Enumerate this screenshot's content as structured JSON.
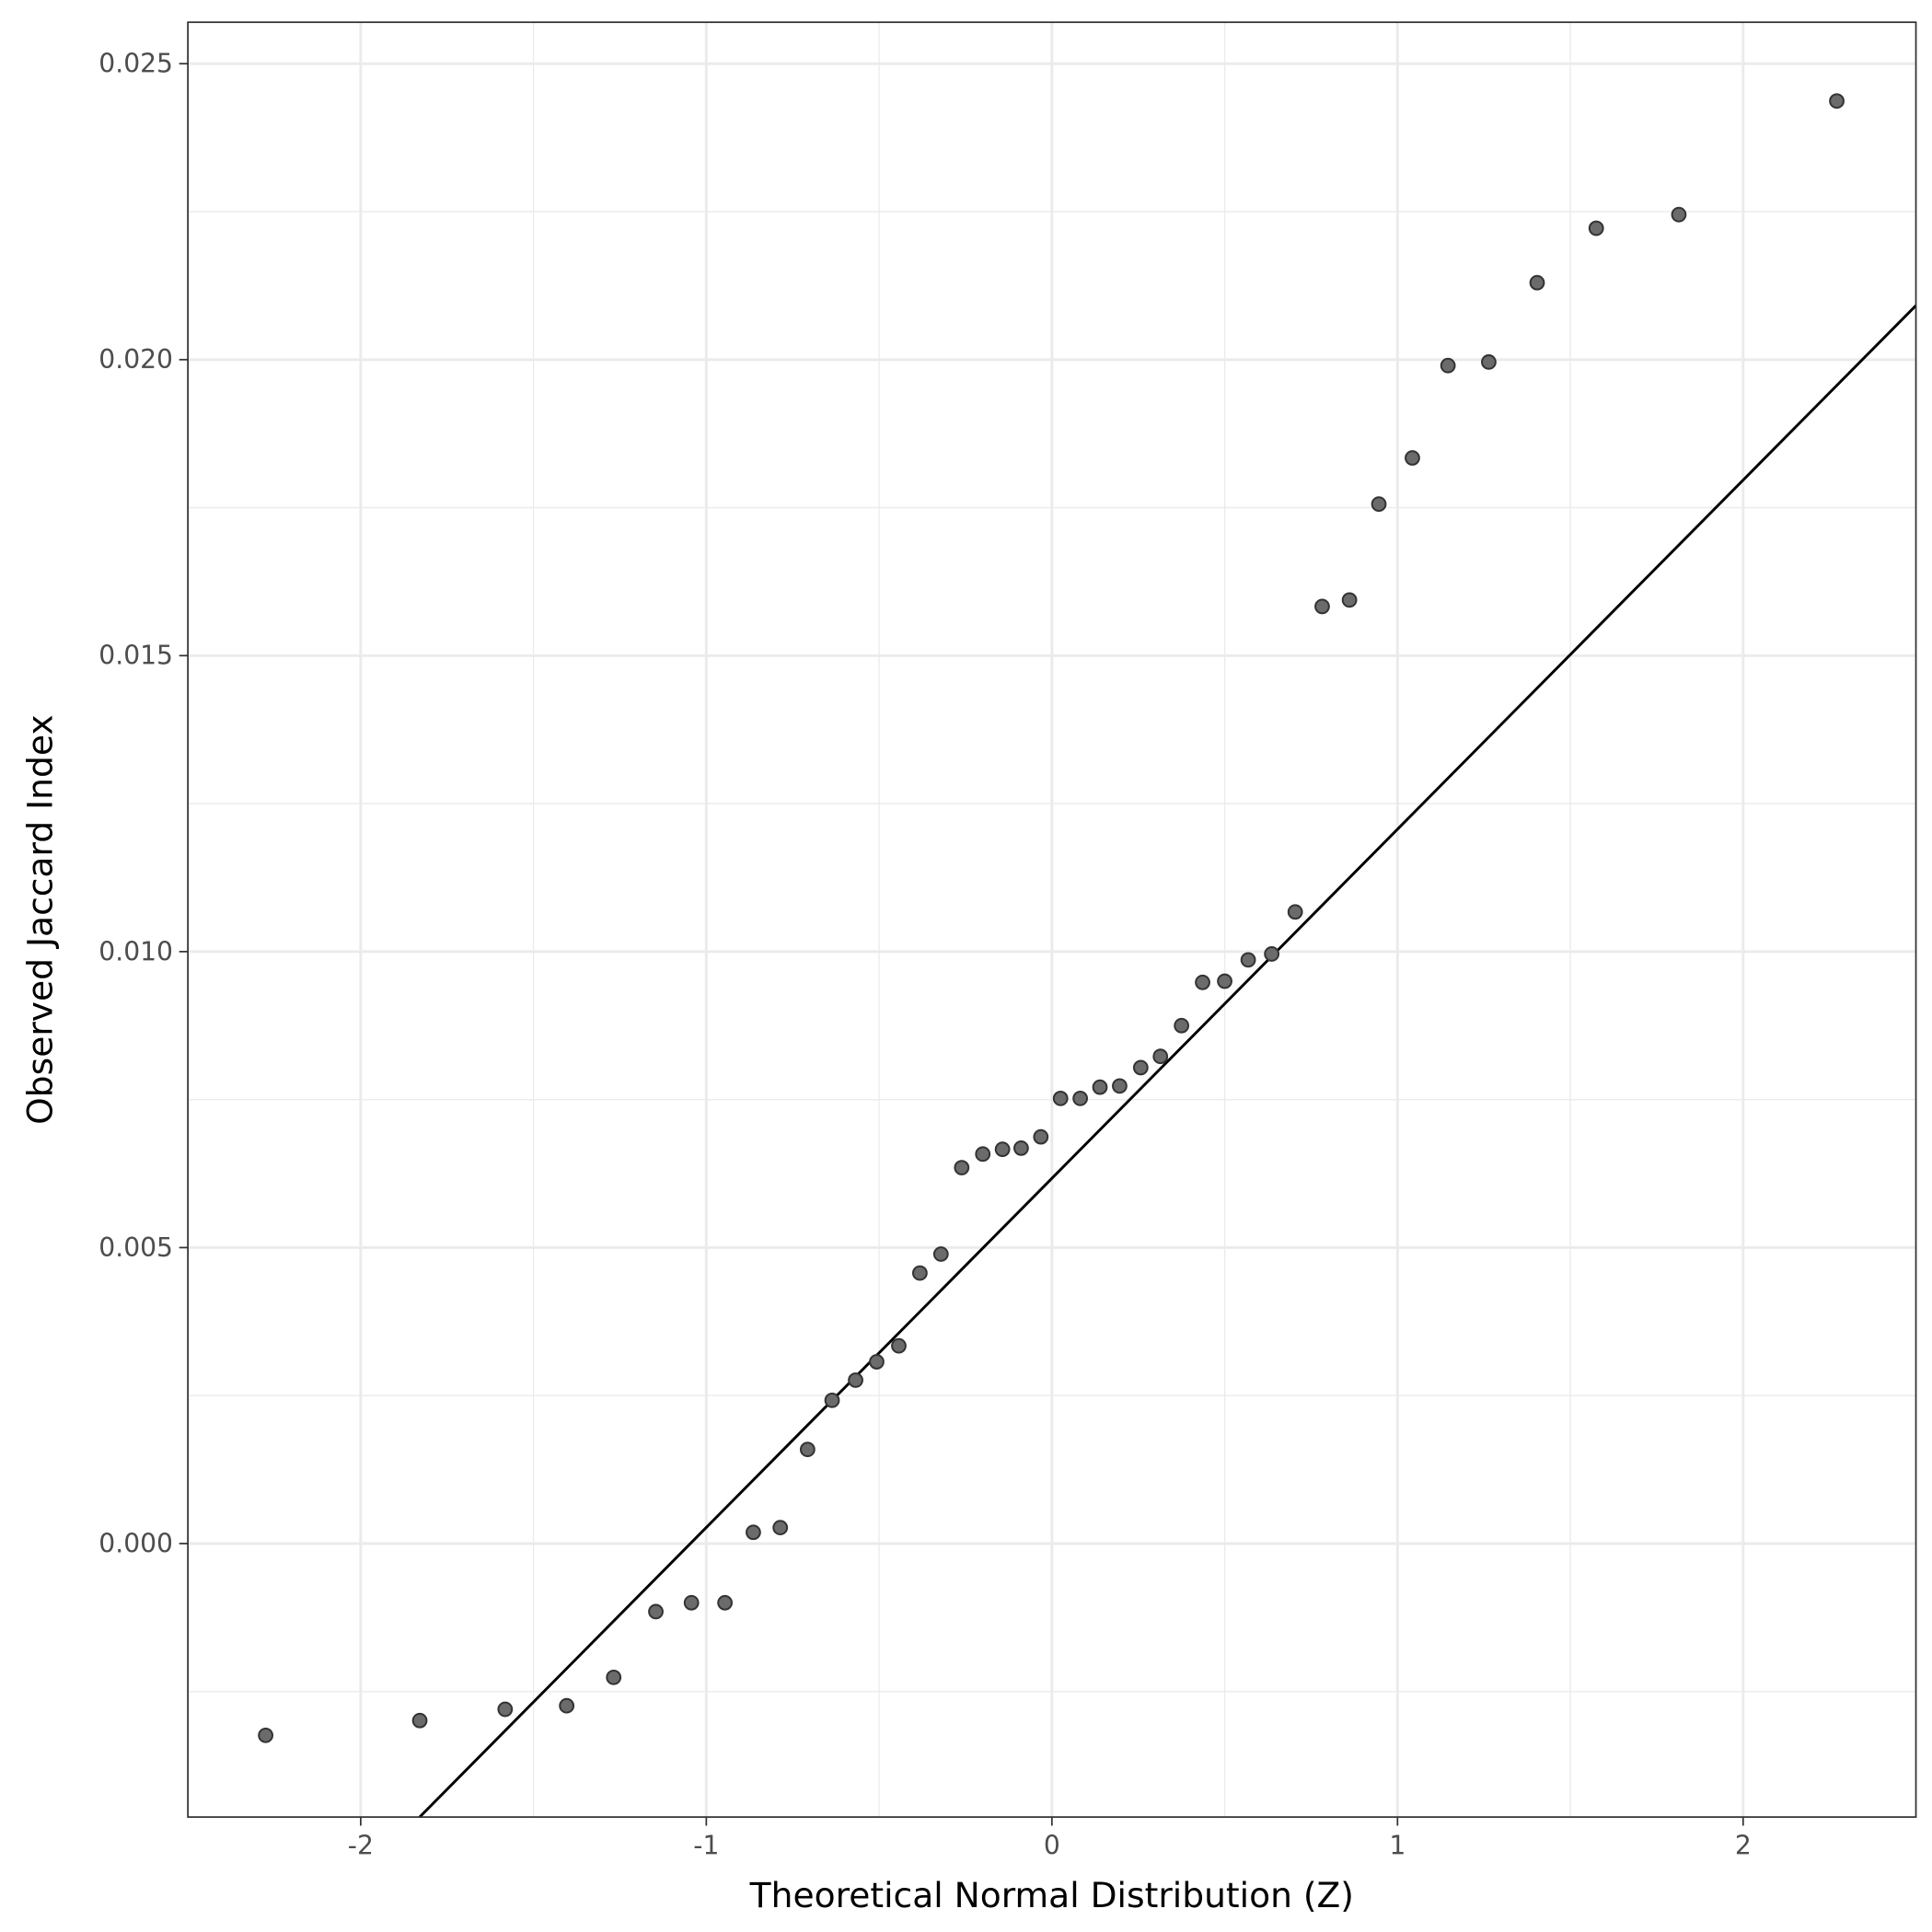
{
  "chart_data": {
    "type": "scatter",
    "title": "",
    "xlabel": "Theoretical Normal Distribution (Z)",
    "ylabel": "Observed Jaccard Index",
    "xlim": [
      -2.5,
      2.5
    ],
    "ylim": [
      -0.00462,
      0.0257
    ],
    "x_ticks": [
      -2,
      -1,
      0,
      1,
      2
    ],
    "x_tick_labels": [
      "-2",
      "-1",
      "0",
      "1",
      "2"
    ],
    "y_ticks": [
      0,
      0.005,
      0.01,
      0.015,
      0.02,
      0.025
    ],
    "y_tick_labels": [
      "0.000",
      "0.005",
      "0.010",
      "0.015",
      "0.020",
      "0.025"
    ],
    "grid": true,
    "reference_line": {
      "intercept": 0.00617,
      "slope": 0.005898
    },
    "x": [
      -2.275,
      -1.829,
      -1.582,
      -1.404,
      -1.268,
      -1.146,
      -1.043,
      -0.946,
      -0.864,
      -0.786,
      -0.707,
      -0.636,
      -0.568,
      -0.507,
      -0.443,
      -0.382,
      -0.321,
      -0.261,
      -0.2,
      -0.143,
      -0.089,
      -0.032,
      0.025,
      0.082,
      0.139,
      0.196,
      0.257,
      0.314,
      0.375,
      0.436,
      0.5,
      0.568,
      0.636,
      0.704,
      0.782,
      0.861,
      0.946,
      1.043,
      1.146,
      1.264,
      1.404,
      1.575,
      1.814,
      2.271
    ],
    "y": [
      -0.00324,
      -0.00299,
      -0.0028,
      -0.00274,
      -0.00226,
      -0.00115,
      -0.001,
      -0.001,
      0.00019,
      0.00027,
      0.00159,
      0.00242,
      0.00276,
      0.00307,
      0.00334,
      0.00457,
      0.00489,
      0.00635,
      0.00658,
      0.00666,
      0.00668,
      0.00687,
      0.00752,
      0.00752,
      0.00771,
      0.00773,
      0.00804,
      0.00823,
      0.00875,
      0.00948,
      0.0095,
      0.00986,
      0.00996,
      0.01067,
      0.01583,
      0.01594,
      0.01756,
      0.01834,
      0.0199,
      0.01996,
      0.0213,
      0.02222,
      0.02245,
      0.02437
    ],
    "colors": {
      "point_fill": "#6b6b6b",
      "point_stroke": "#333333",
      "line": "#000000",
      "grid": "#ebebeb"
    }
  }
}
